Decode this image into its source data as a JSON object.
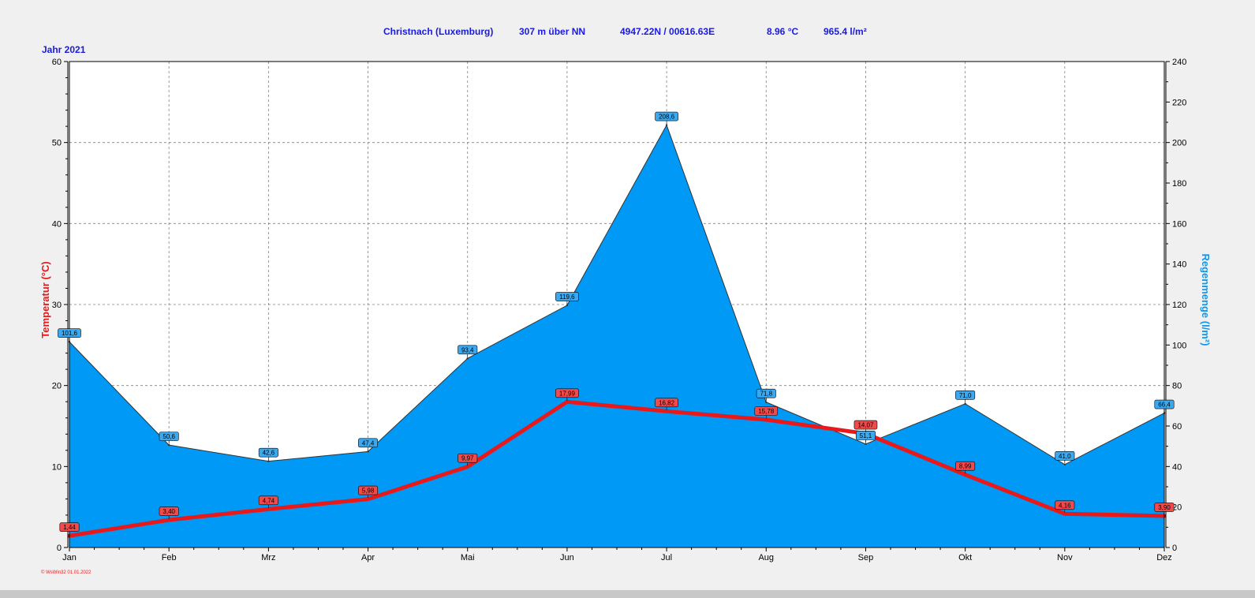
{
  "header": {
    "station": "Christnach (Luxemburg)",
    "altitude": "307 m über NN",
    "coordinates": "4947.22N / 00616.63E",
    "mean_temp": "8.96 °C",
    "total_rain": "965.4 l/m²",
    "year_label": "Jahr  2021"
  },
  "footer": {
    "credit": "© WsWin32  01.01.2022"
  },
  "colors": {
    "rain_fill": "#0099f5",
    "temp_line": "#e8191b",
    "header_text": "#1a1ae6",
    "rain_title": "#1596e6",
    "background": "#f0f0f0",
    "plot_background": "#ffffff"
  },
  "chart_data": {
    "type": "line",
    "categories": [
      "Jan",
      "Feb",
      "Mrz",
      "Apr",
      "Mai",
      "Jun",
      "Jul",
      "Aug",
      "Sep",
      "Okt",
      "Nov",
      "Dez"
    ],
    "y_left": {
      "label": "Temperatur  (°C)",
      "range": [
        0,
        60
      ],
      "ticks": [
        0,
        10,
        20,
        30,
        40,
        50,
        60
      ]
    },
    "y_right": {
      "label": "Regenmenge  (l/m²)",
      "range": [
        0,
        240
      ],
      "ticks": [
        0,
        20,
        40,
        60,
        80,
        100,
        120,
        140,
        160,
        180,
        200,
        220,
        240
      ]
    },
    "grid": true,
    "series": [
      {
        "kind": "area",
        "axis": "right",
        "values": [
          101.6,
          50.6,
          42.6,
          47.4,
          93.4,
          119.6,
          208.6,
          71.8,
          51.1,
          71.0,
          41.0,
          66.4
        ],
        "labels": [
          "101,6",
          "50,6",
          "42,6",
          "47,4",
          "93,4",
          "119,6",
          "208,6",
          "71,8",
          "51,1",
          "71,0",
          "41,0",
          "66,4"
        ]
      },
      {
        "kind": "line",
        "axis": "left",
        "values": [
          1.44,
          3.4,
          4.74,
          5.98,
          9.97,
          17.99,
          16.82,
          15.78,
          14.07,
          8.99,
          4.16,
          3.9
        ],
        "labels": [
          "1,44",
          "3,40",
          "4,74",
          "5,98",
          "9,97",
          "17,99",
          "16,82",
          "15,78",
          "14,07",
          "8,99",
          "4,16",
          "3,90"
        ]
      }
    ]
  }
}
